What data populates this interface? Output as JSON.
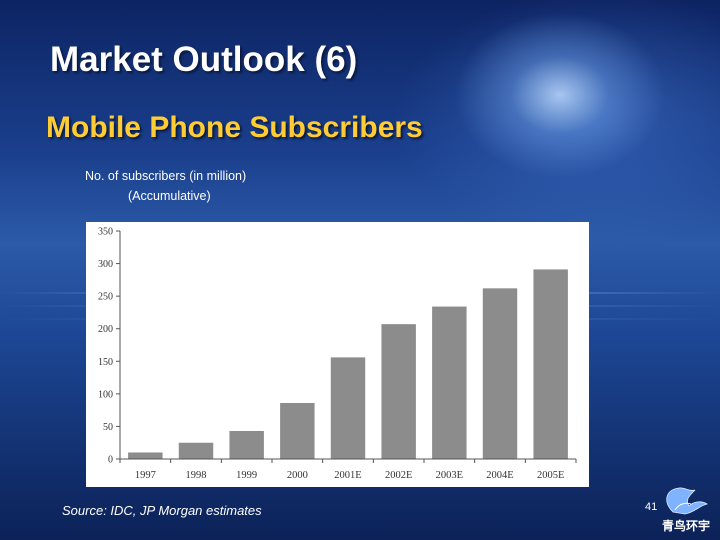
{
  "slide": {
    "title": "Market Outlook (6)",
    "subtitle": "Mobile Phone Subscribers",
    "y_title_line1": "No. of subscribers (in million)",
    "y_title_line2": "(Accumulative)",
    "source": "Source: IDC, JP Morgan estimates",
    "page_number": "41",
    "logo_text": "青鸟环宇"
  },
  "chart_data": {
    "type": "bar",
    "categories": [
      "1997",
      "1998",
      "1999",
      "2000",
      "2001E",
      "2002E",
      "2003E",
      "2004E",
      "2005E"
    ],
    "values": [
      10,
      25,
      43,
      86,
      156,
      207,
      234,
      262,
      291
    ],
    "ylabel": "No. of subscribers (in million) (Accumulative)",
    "ylim": [
      0,
      350
    ],
    "yticks": [
      0,
      50,
      100,
      150,
      200,
      250,
      300,
      350
    ],
    "bar_color": "#8c8c8c",
    "grid": false
  }
}
